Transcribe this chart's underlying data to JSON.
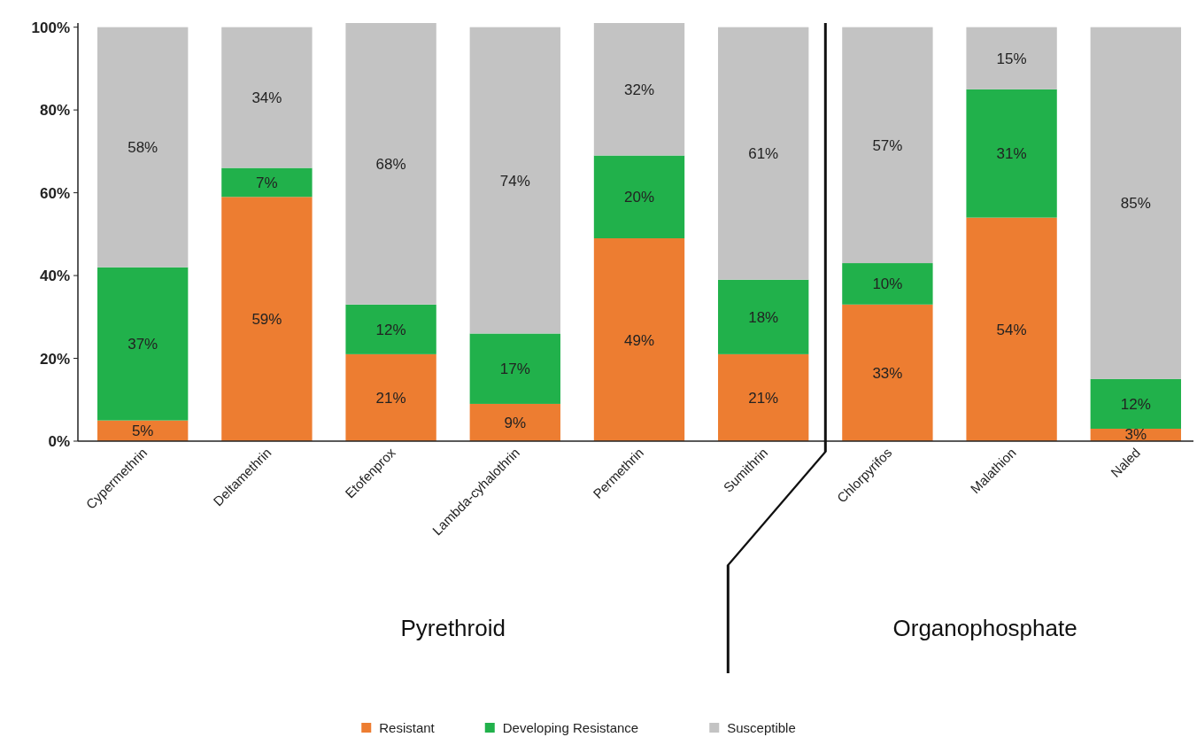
{
  "chart_data": {
    "type": "bar",
    "stacked": true,
    "categories": [
      "Cypermethrin",
      "Deltamethrin",
      "Etofenprox",
      "Lambda-cyhalothrin",
      "Permethrin",
      "Sumithrin",
      "Chlorpyrifos",
      "Malathion",
      "Naled"
    ],
    "series": [
      {
        "name": "Resistant",
        "color": "#ed7d31",
        "values": [
          5,
          59,
          21,
          9,
          49,
          21,
          33,
          54,
          3
        ],
        "value_labels": [
          "5%",
          "59%",
          "21%",
          "9%",
          "49%",
          "21%",
          "33%",
          "54%",
          "3%"
        ]
      },
      {
        "name": "Developing Resistance",
        "color": "#21b14b",
        "values": [
          37,
          7,
          12,
          17,
          20,
          18,
          10,
          31,
          12
        ],
        "value_labels": [
          "37%",
          "7%",
          "12%",
          "17%",
          "20%",
          "18%",
          "10%",
          "31%",
          "12%"
        ]
      },
      {
        "name": "Susceptible",
        "color": "#c3c3c3",
        "values": [
          58,
          34,
          68,
          74,
          32,
          61,
          57,
          15,
          85
        ],
        "value_labels": [
          "58%",
          "34%",
          "68%",
          "74%",
          "32%",
          "61%",
          "57%",
          "15%",
          "85%"
        ]
      }
    ],
    "ylim": [
      0,
      101
    ],
    "yticks": [
      {
        "value": 0,
        "label": "0%"
      },
      {
        "value": 20,
        "label": "20%"
      },
      {
        "value": 40,
        "label": "40%"
      },
      {
        "value": 60,
        "label": "60%"
      },
      {
        "value": 80,
        "label": "80%"
      },
      {
        "value": 100,
        "label": "100%"
      }
    ],
    "legend": "bottom",
    "grid": false,
    "annotations": [
      "Pyrethroid",
      "Organophosphate"
    ]
  }
}
